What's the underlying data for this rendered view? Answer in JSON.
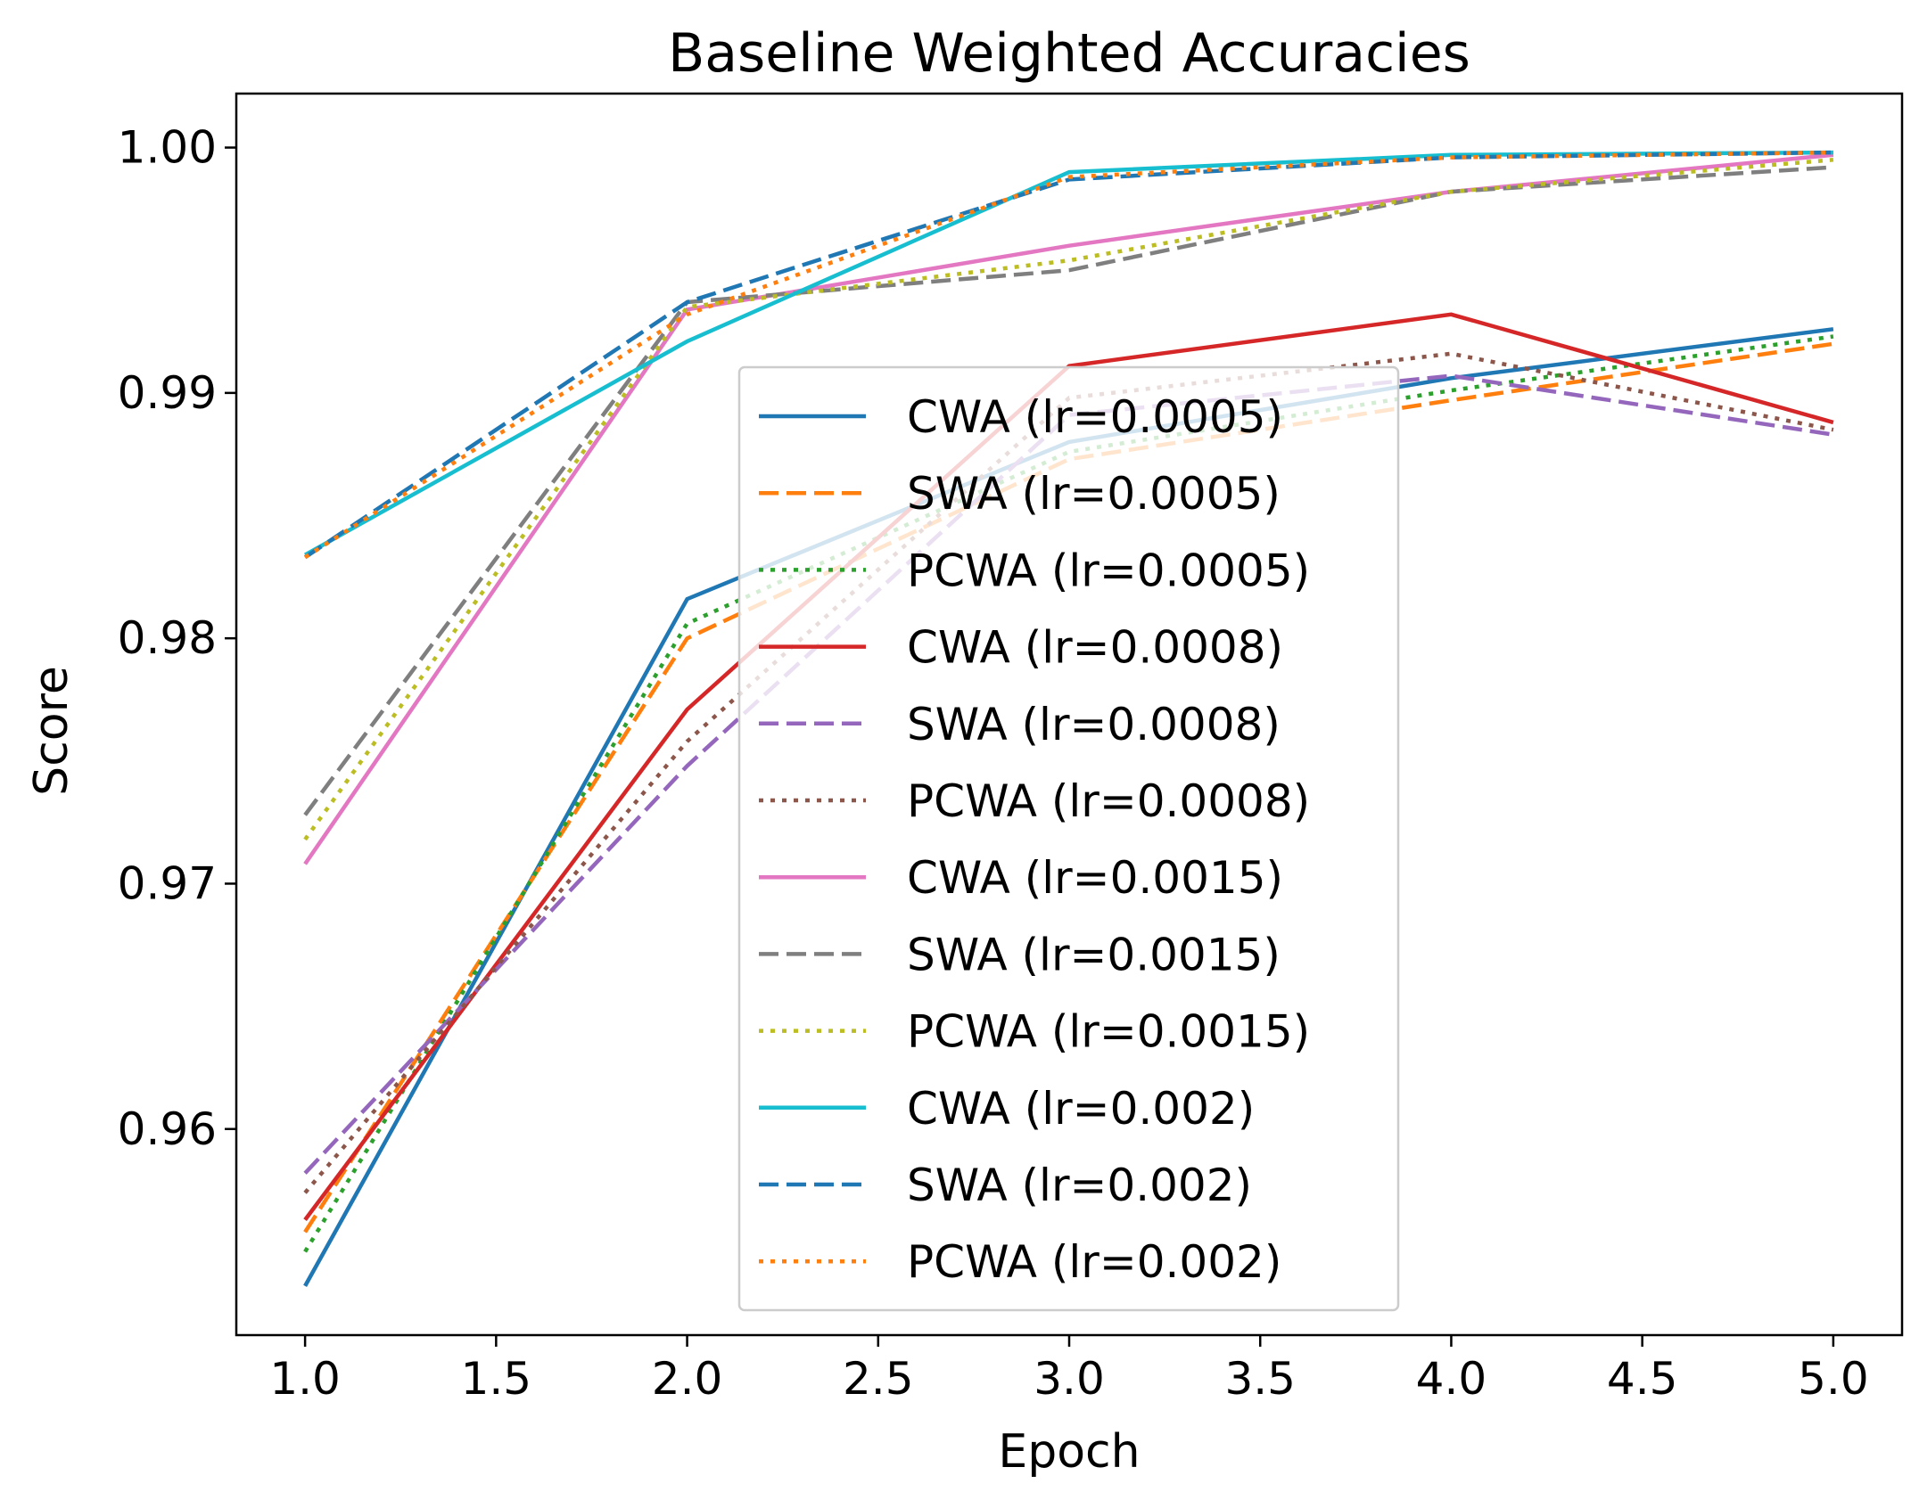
{
  "chart_data": {
    "type": "line",
    "title": "Baseline Weighted Accuracies",
    "xlabel": "Epoch",
    "ylabel": "Score",
    "xlim": [
      0.82,
      5.18
    ],
    "ylim": [
      0.9516,
      1.0022
    ],
    "xticks": [
      "1.0",
      "1.5",
      "2.0",
      "2.5",
      "3.0",
      "3.5",
      "4.0",
      "4.5",
      "5.0"
    ],
    "yticks": [
      "0.96",
      "0.97",
      "0.98",
      "0.99",
      "1.00"
    ],
    "grid": false,
    "legend_position": "center",
    "x": [
      1,
      2,
      3,
      4,
      5
    ],
    "series": [
      {
        "name": "CWA (lr=0.0005)",
        "color": "#1f77b4",
        "dash": "solid",
        "values": [
          0.9536,
          0.9816,
          0.988,
          0.9906,
          0.9926
        ]
      },
      {
        "name": "SWA (lr=0.0005)",
        "color": "#ff7f0e",
        "dash": "dashed",
        "values": [
          0.9558,
          0.98,
          0.9873,
          0.9897,
          0.992
        ]
      },
      {
        "name": "PCWA (lr=0.0005)",
        "color": "#2ca02c",
        "dash": "dotted",
        "values": [
          0.955,
          0.9806,
          0.9876,
          0.9901,
          0.9923
        ]
      },
      {
        "name": "CWA (lr=0.0008)",
        "color": "#d62728",
        "dash": "solid",
        "values": [
          0.9563,
          0.9771,
          0.9911,
          0.9932,
          0.9888
        ]
      },
      {
        "name": "SWA (lr=0.0008)",
        "color": "#9467bd",
        "dash": "dashed",
        "values": [
          0.9582,
          0.9748,
          0.9891,
          0.9907,
          0.9883
        ]
      },
      {
        "name": "PCWA (lr=0.0008)",
        "color": "#8c564b",
        "dash": "dotted",
        "values": [
          0.9574,
          0.9758,
          0.9898,
          0.9916,
          0.9885
        ]
      },
      {
        "name": "CWA (lr=0.0015)",
        "color": "#e377c2",
        "dash": "solid",
        "values": [
          0.9708,
          0.9934,
          0.996,
          0.9982,
          0.9997
        ]
      },
      {
        "name": "SWA (lr=0.0015)",
        "color": "#7f7f7f",
        "dash": "dashed",
        "values": [
          0.9728,
          0.9937,
          0.995,
          0.9982,
          0.9992
        ]
      },
      {
        "name": "PCWA (lr=0.0015)",
        "color": "#bcbd22",
        "dash": "dotted",
        "values": [
          0.9718,
          0.9935,
          0.9954,
          0.9982,
          0.9995
        ]
      },
      {
        "name": "CWA (lr=0.002)",
        "color": "#17becf",
        "dash": "solid",
        "values": [
          0.9834,
          0.9921,
          0.999,
          0.9997,
          0.9998
        ]
      },
      {
        "name": "SWA (lr=0.002)",
        "color": "#1f77b4",
        "dash": "dashed",
        "values": [
          0.9833,
          0.9937,
          0.9987,
          0.9996,
          0.9998
        ]
      },
      {
        "name": "PCWA (lr=0.002)",
        "color": "#ff7f0e",
        "dash": "dotted",
        "values": [
          0.9833,
          0.9932,
          0.9988,
          0.9996,
          0.9998
        ]
      }
    ]
  }
}
